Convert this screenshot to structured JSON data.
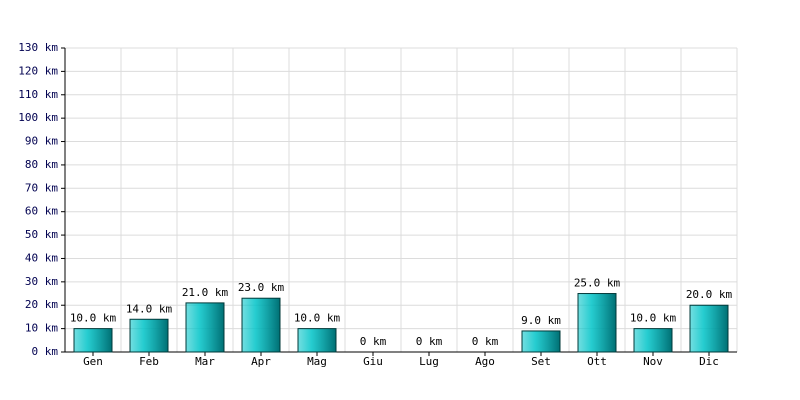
{
  "chart_data": {
    "type": "bar",
    "categories": [
      "Gen",
      "Feb",
      "Mar",
      "Apr",
      "Mag",
      "Giu",
      "Lug",
      "Ago",
      "Set",
      "Ott",
      "Nov",
      "Dic"
    ],
    "values": [
      10,
      14,
      21,
      23,
      10,
      0,
      0,
      0,
      9,
      25,
      10,
      20
    ],
    "value_labels": [
      "10.0 km",
      "14.0 km",
      "21.0 km",
      "23.0 km",
      "10.0 km",
      "0 km",
      "0 km",
      "0 km",
      "9.0 km",
      "25.0 km",
      "10.0 km",
      "20.0 km"
    ],
    "color": "#00c4c8",
    "ylim": [
      0,
      130
    ],
    "yticks": [
      {
        "value": 0,
        "label": "0 km"
      },
      {
        "value": 10,
        "label": "10 km"
      },
      {
        "value": 20,
        "label": "20 km"
      },
      {
        "value": 30,
        "label": "30 km"
      },
      {
        "value": 40,
        "label": "40 km"
      },
      {
        "value": 50,
        "label": "50 km"
      },
      {
        "value": 60,
        "label": "60 km"
      },
      {
        "value": 70,
        "label": "70 km"
      },
      {
        "value": 80,
        "label": "80 km"
      },
      {
        "value": 90,
        "label": "90 km"
      },
      {
        "value": 100,
        "label": "100 km"
      },
      {
        "value": 110,
        "label": "110 km"
      },
      {
        "value": 120,
        "label": "120 km"
      },
      {
        "value": 130,
        "label": "130 km"
      }
    ],
    "grid": true
  }
}
